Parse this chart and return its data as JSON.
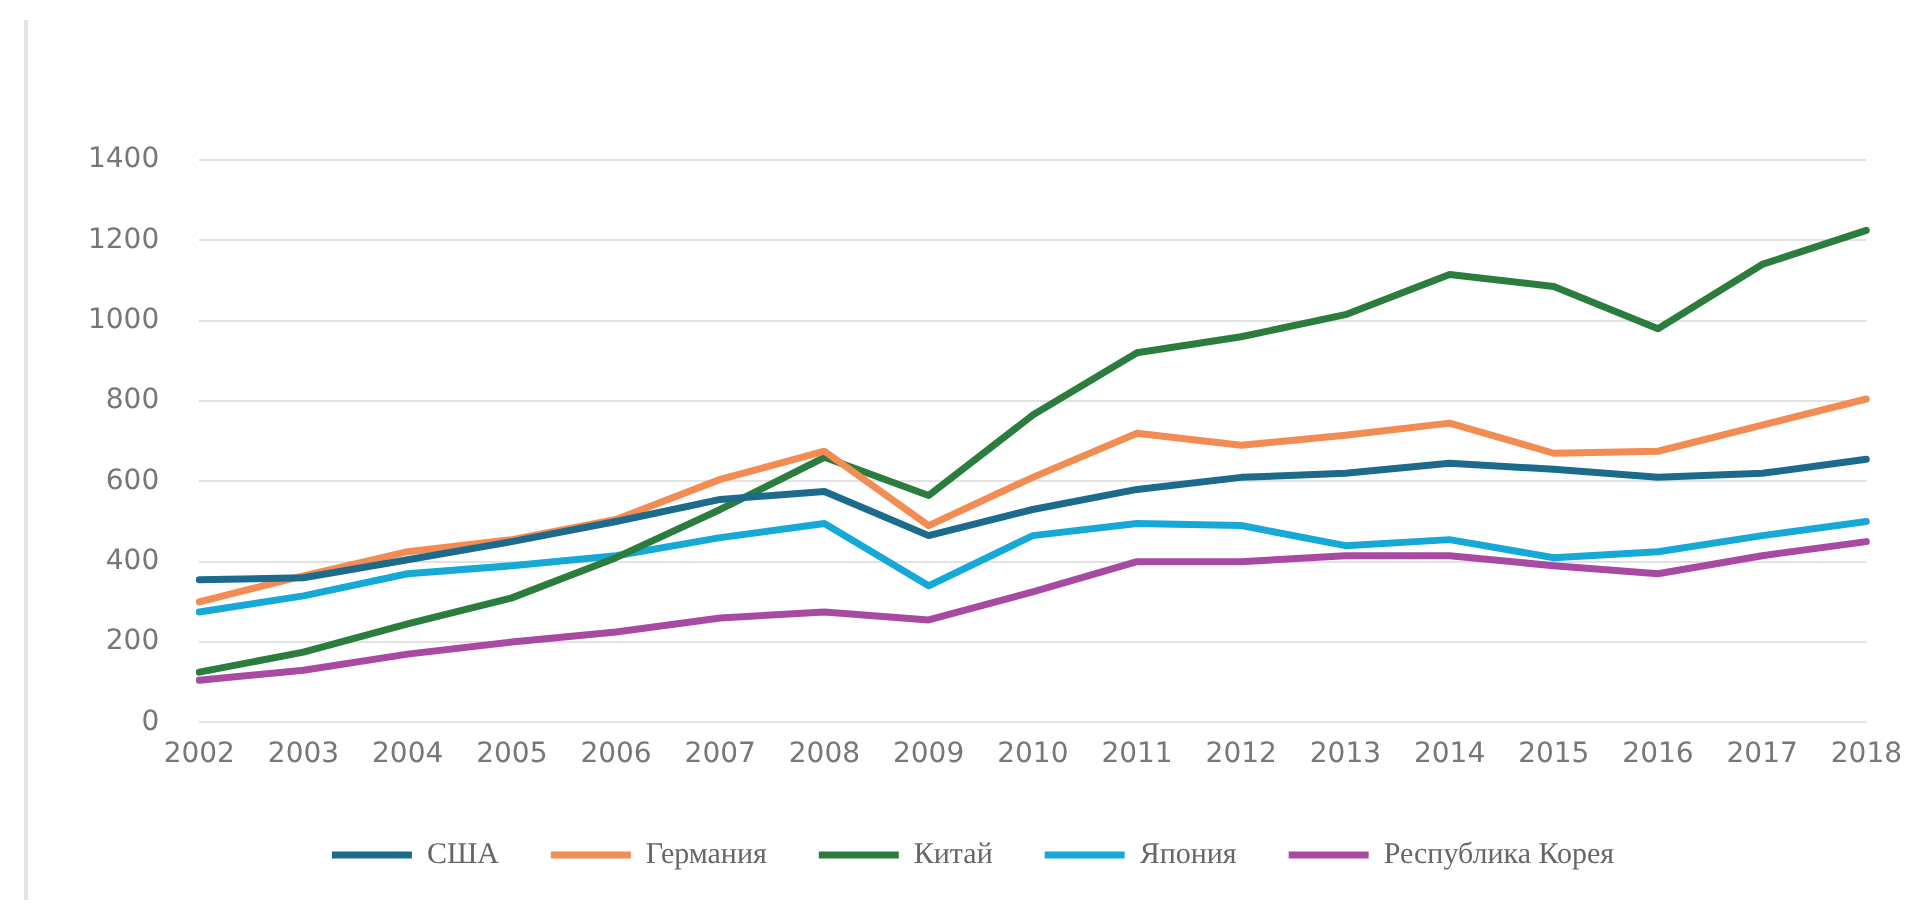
{
  "chart_data": {
    "type": "line",
    "categories": [
      "2002",
      "2003",
      "2004",
      "2005",
      "2006",
      "2007",
      "2008",
      "2009",
      "2010",
      "2011",
      "2012",
      "2013",
      "2014",
      "2015",
      "2016",
      "2017",
      "2018"
    ],
    "series": [
      {
        "name": "США",
        "color": "#1d6b8c",
        "values": [
          355,
          360,
          405,
          450,
          500,
          555,
          575,
          465,
          530,
          580,
          610,
          620,
          645,
          630,
          610,
          620,
          655
        ]
      },
      {
        "name": "Германия",
        "color": "#f28c52",
        "values": [
          300,
          365,
          425,
          455,
          505,
          605,
          675,
          490,
          610,
          720,
          690,
          715,
          745,
          670,
          675,
          740,
          805
        ]
      },
      {
        "name": "Китай",
        "color": "#2a7d3c",
        "values": [
          125,
          175,
          245,
          310,
          410,
          530,
          660,
          565,
          765,
          920,
          960,
          1015,
          1115,
          1085,
          980,
          1140,
          1225
        ]
      },
      {
        "name": "Япония",
        "color": "#16a9d8",
        "values": [
          275,
          315,
          370,
          390,
          415,
          460,
          495,
          340,
          465,
          495,
          490,
          440,
          455,
          410,
          425,
          465,
          500
        ]
      },
      {
        "name": "Республика Корея",
        "color": "#a84aa2",
        "values": [
          105,
          130,
          170,
          200,
          225,
          260,
          275,
          255,
          325,
          400,
          400,
          415,
          415,
          390,
          370,
          415,
          450
        ]
      }
    ],
    "ylim": [
      0,
      1400
    ],
    "yticks": [
      0,
      200,
      400,
      600,
      800,
      1000,
      1200,
      1400
    ],
    "grid": "y",
    "legend": "bottom",
    "marker": "none",
    "line_style": "solid"
  }
}
